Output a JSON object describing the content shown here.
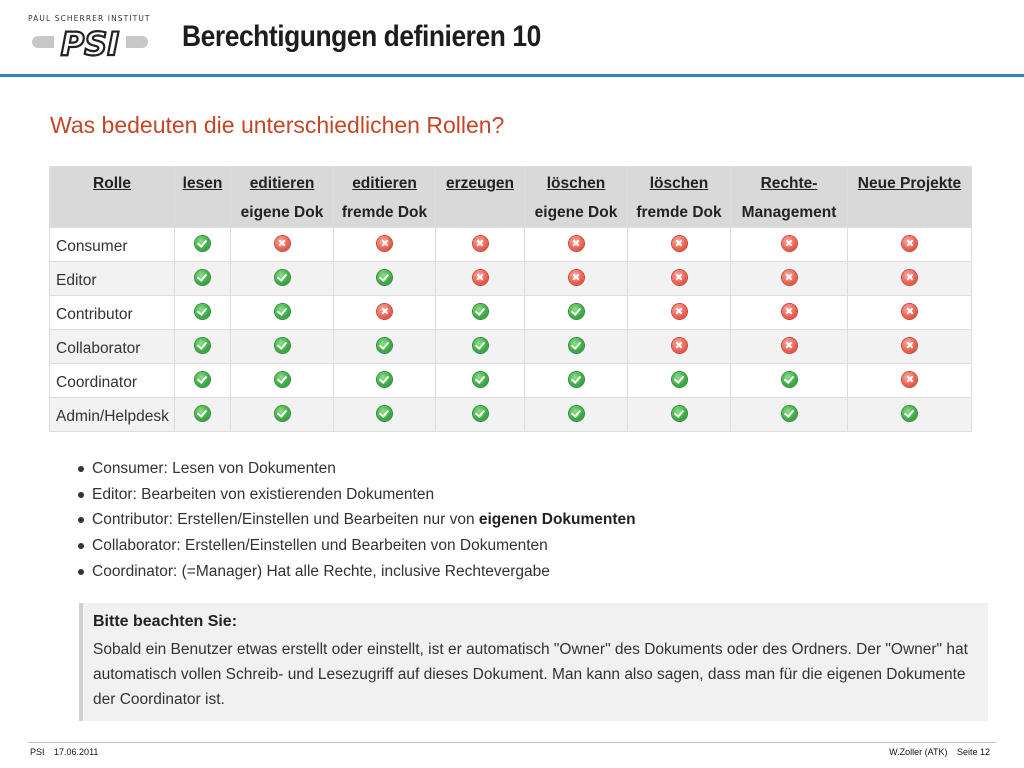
{
  "header": {
    "logo_caption": "PAUL SCHERRER INSTITUT",
    "logo_text": "PSI",
    "title": "Berechtigungen definieren 10"
  },
  "question": "Was bedeuten die unterschiedlichen Rollen?",
  "table": {
    "headers": [
      {
        "line1": "Rolle",
        "line2": ""
      },
      {
        "line1": "lesen",
        "line2": ""
      },
      {
        "line1": "editieren",
        "line2": "eigene Dok"
      },
      {
        "line1": "editieren",
        "line2": "fremde Dok"
      },
      {
        "line1": "erzeugen",
        "line2": ""
      },
      {
        "line1": "löschen",
        "line2": "eigene Dok"
      },
      {
        "line1": "löschen",
        "line2": "fremde Dok"
      },
      {
        "line1": "Rechte-",
        "line2": "Management"
      },
      {
        "line1": "Neue Projekte",
        "line2": ""
      }
    ],
    "rows": [
      {
        "role": "Consumer",
        "perms": [
          true,
          false,
          false,
          false,
          false,
          false,
          false,
          false
        ]
      },
      {
        "role": "Editor",
        "perms": [
          true,
          true,
          true,
          false,
          false,
          false,
          false,
          false
        ]
      },
      {
        "role": "Contributor",
        "perms": [
          true,
          true,
          false,
          true,
          true,
          false,
          false,
          false
        ]
      },
      {
        "role": "Collaborator",
        "perms": [
          true,
          true,
          true,
          true,
          true,
          false,
          false,
          false
        ]
      },
      {
        "role": "Coordinator",
        "perms": [
          true,
          true,
          true,
          true,
          true,
          true,
          true,
          false
        ]
      },
      {
        "role": "Admin/Helpdesk",
        "perms": [
          true,
          true,
          true,
          true,
          true,
          true,
          true,
          true
        ]
      }
    ]
  },
  "bullets": [
    {
      "text": "Consumer: Lesen von Dokumenten",
      "bold": ""
    },
    {
      "text": "Editor: Bearbeiten von existierenden Dokumenten",
      "bold": ""
    },
    {
      "text": "Contributor: Erstellen/Einstellen und Bearbeiten nur von ",
      "bold": "eigenen Dokumenten"
    },
    {
      "text": "Collaborator: Erstellen/Einstellen und Bearbeiten von Dokumenten",
      "bold": ""
    },
    {
      "text": "Coordinator: (=Manager) Hat alle Rechte, inclusive Rechtevergabe",
      "bold": ""
    }
  ],
  "note": {
    "title": "Bitte beachten Sie:",
    "text": "Sobald ein Benutzer etwas erstellt oder einstellt, ist er automatisch \"Owner\" des Dokuments oder des Ordners. Der \"Owner\" hat automatisch vollen Schreib- und Lesezugriff auf dieses Dokument. Man kann also sagen, dass man für die eigenen Dokumente der Coordinator ist."
  },
  "footer": {
    "org": "PSI",
    "date": "17.06.2011",
    "author": "W.Zoller (ATK)",
    "page": "Seite 12"
  },
  "colors": {
    "accent_blue": "#3a7fc1",
    "question_orange": "#c34727",
    "allowed_green": "#3fae47",
    "denied_red": "#ec6454"
  },
  "icons": {
    "allowed": "check-circle-icon",
    "denied": "x-circle-icon"
  }
}
